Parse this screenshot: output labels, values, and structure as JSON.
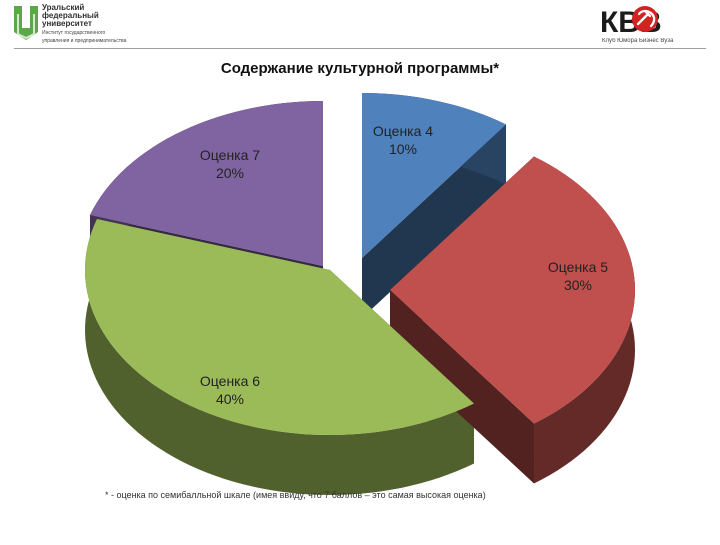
{
  "header": {
    "left_logo": {
      "lines": [
        "Уральский",
        "федеральный",
        "университет"
      ],
      "subtext_1": "Институт государственного",
      "subtext_2": "управления и предпринимательства"
    },
    "right_logo": {
      "text": "КВВ",
      "caption": "Клуб Юмора Бизнес Вуза"
    }
  },
  "chart_data": {
    "type": "pie",
    "title": "Содержание культурной программы*",
    "slices": [
      {
        "label": "Оценка 4",
        "value": 10,
        "display": "10%",
        "color": "#4f81bd"
      },
      {
        "label": "Оценка 5",
        "value": 30,
        "display": "30%",
        "color": "#c0504d"
      },
      {
        "label": "Оценка 6",
        "value": 40,
        "display": "40%",
        "color": "#9bbb59"
      },
      {
        "label": "Оценка 7",
        "value": 20,
        "display": "20%",
        "color": "#8064a2"
      }
    ],
    "footnote": "* - оценка по семибалльной шкале (имея ввиду, что 7 баллов – это самая высокая оценка)"
  }
}
